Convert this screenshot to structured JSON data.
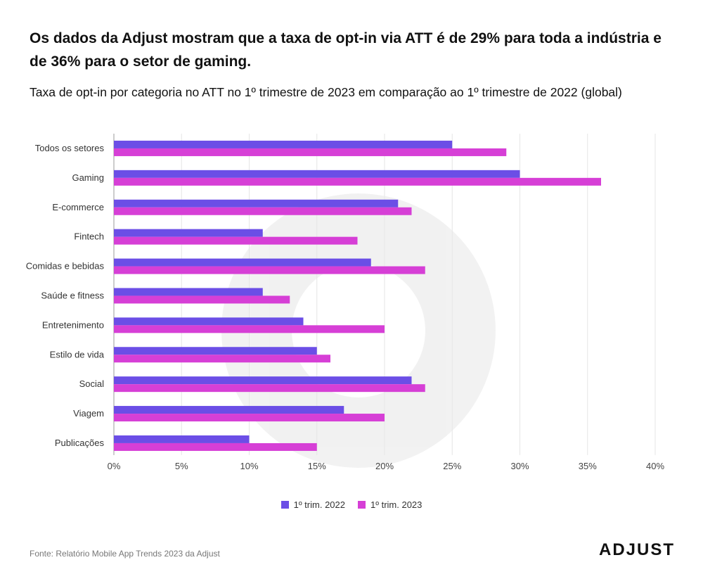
{
  "header": {
    "title": "Os dados da Adjust mostram que a taxa de opt-in via ATT é de 29% para toda a indústria e de 36% para o setor de gaming.",
    "subtitle": "Taxa de opt-in por categoria no ATT no 1º trimestre de 2023 em comparação ao 1º trimestre de 2022 (global)"
  },
  "chart_data": {
    "type": "bar",
    "orientation": "horizontal",
    "categories": [
      "Todos os setores",
      "Gaming",
      "E-commerce",
      "Fintech",
      "Comidas e bebidas",
      "Saúde e fitness",
      "Entretenimento",
      "Estilo de vida",
      "Social",
      "Viagem",
      "Publicações"
    ],
    "series": [
      {
        "name": "1º trim. 2022",
        "color": "#6b4ee6",
        "values": [
          25,
          30,
          21,
          11,
          19,
          11,
          14,
          15,
          22,
          17,
          10
        ]
      },
      {
        "name": "1º trim. 2023",
        "color": "#d63fd6",
        "values": [
          29,
          36,
          22,
          18,
          23,
          13,
          20,
          16,
          23,
          20,
          15
        ]
      }
    ],
    "xlim": [
      0,
      40
    ],
    "xticks": [
      0,
      5,
      10,
      15,
      20,
      25,
      30,
      35,
      40
    ],
    "tick_suffix": "%",
    "grid": true,
    "legend_position": "bottom-center"
  },
  "footer": {
    "source": "Fonte: Relatório Mobile App Trends 2023 da Adjust",
    "logo_text": "ADJUST"
  }
}
